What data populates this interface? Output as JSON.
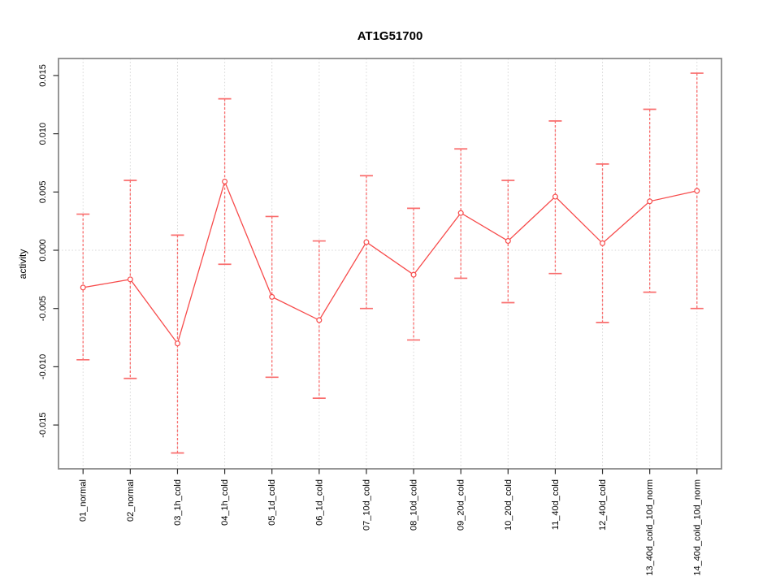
{
  "page": {
    "background": "#ffffff"
  },
  "chart_data": {
    "type": "line",
    "title": "AT1G51700",
    "xlabel": "",
    "ylabel": "activity",
    "categories": [
      "01_normal",
      "02_normal",
      "03_1h_cold",
      "04_1h_cold",
      "05_1d_cold",
      "06_1d_cold",
      "07_10d_cold",
      "08_10d_cold",
      "09_20d_cold",
      "10_20d_cold",
      "11_40d_cold",
      "12_40d_cold",
      "13_40d_cold_10d_norm",
      "14_40d_cold_10d_norm"
    ],
    "series": [
      {
        "name": "activity",
        "values": [
          -0.0032,
          -0.0025,
          -0.008,
          0.0059,
          -0.004,
          -0.006,
          0.0007,
          -0.0021,
          0.0032,
          0.0008,
          0.0046,
          0.0006,
          0.0042,
          0.0051
        ],
        "ci_upper": [
          0.0031,
          0.006,
          0.0013,
          0.013,
          0.0029,
          0.0008,
          0.0064,
          0.0036,
          0.0087,
          0.006,
          0.0111,
          0.0074,
          0.0121,
          0.0152
        ],
        "ci_lower": [
          -0.0094,
          -0.011,
          -0.0174,
          -0.0012,
          -0.0109,
          -0.0127,
          -0.005,
          -0.0077,
          -0.0024,
          -0.0045,
          -0.002,
          -0.0062,
          -0.0036,
          -0.005
        ]
      }
    ],
    "yticks": [
      0.015,
      0.01,
      0.005,
      0.0,
      -0.005,
      -0.01,
      -0.015
    ],
    "ytick_decimals": 3,
    "ylim": [
      -0.01876,
      0.01646
    ],
    "xlim": [
      0.48,
      14.52
    ],
    "grid": {
      "vertical_at_categories": true,
      "horizontal_at_zero": true,
      "style": "dotted"
    },
    "legend": "none",
    "marker": "open-circle",
    "error_bar_style": "dashed-with-caps",
    "colors": {
      "series": "#f74b4b",
      "error_bar": "#f96d6d",
      "box": "#8a8a8a",
      "grid": "#d6d6d6",
      "tick": "#2e2e2e",
      "text": "#000000"
    }
  }
}
